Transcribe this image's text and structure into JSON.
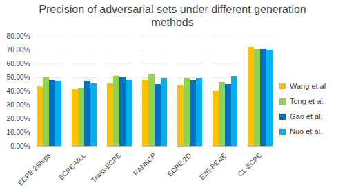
{
  "chart_data": {
    "type": "bar",
    "title": "Precision of adversarial sets under different generation methods",
    "categories": [
      "ECPE-2Steps",
      "ECPE-MLL",
      "Trans-ECPE",
      "RANKCP",
      "ECPE-2D",
      "E2E-PExtE",
      "CL-ECPE"
    ],
    "series": [
      {
        "name": "Wang et al",
        "color": "#FFC000",
        "values": [
          43.5,
          41,
          45.5,
          48,
          44,
          40,
          72
        ]
      },
      {
        "name": "Tong et al.",
        "color": "#92D050",
        "values": [
          50,
          42,
          51,
          52,
          49.5,
          46.5,
          70.5
        ]
      },
      {
        "name": "Gao et al.",
        "color": "#0070C0",
        "values": [
          48,
          47,
          50,
          45,
          47.5,
          45,
          70.5
        ]
      },
      {
        "name": "Nuo et al.",
        "color": "#00B0F0",
        "values": [
          47,
          45.5,
          48,
          49,
          49.5,
          50.5,
          70
        ]
      }
    ],
    "ylim": [
      0,
      80
    ],
    "yticks": [
      {
        "value": 0,
        "label": "0.00%"
      },
      {
        "value": 10,
        "label": "10.00%"
      },
      {
        "value": 20,
        "label": "20.00%"
      },
      {
        "value": 30,
        "label": "30.00%"
      },
      {
        "value": 40,
        "label": "40.00%"
      },
      {
        "value": 50,
        "label": "50.00%"
      },
      {
        "value": 60,
        "label": "60.00%"
      },
      {
        "value": 70,
        "label": "70.00%"
      },
      {
        "value": 80,
        "label": "80.00%"
      }
    ],
    "grid": true,
    "legend": "right"
  }
}
